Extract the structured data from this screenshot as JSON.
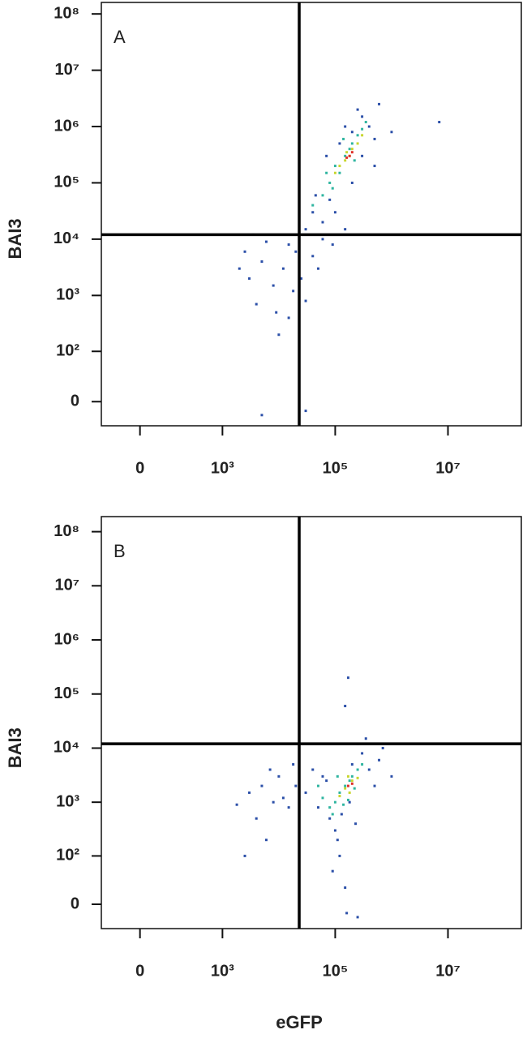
{
  "chart_data": [
    {
      "type": "scatter",
      "panel": "A",
      "ylabel": "BAI3",
      "xlim": [
        -160,
        200000000
      ],
      "ylim": [
        -30,
        160000000
      ],
      "xticks": [
        0,
        {
          "value": 1000,
          "label": "10³"
        },
        {
          "value": 100000,
          "label": "10⁵"
        },
        {
          "value": 10000000,
          "label": "10⁷"
        }
      ],
      "yticks": [
        0,
        {
          "value": 100,
          "label": "10²"
        },
        {
          "value": 1000,
          "label": "10³"
        },
        {
          "value": 10000,
          "label": "10⁴"
        },
        {
          "value": 100000,
          "label": "10⁵"
        },
        {
          "value": 1000000,
          "label": "10⁶"
        },
        {
          "value": 10000000,
          "label": "10⁷"
        },
        {
          "value": 100000000,
          "label": "10⁸"
        }
      ],
      "gates": {
        "x": 23000,
        "y": 12000
      },
      "series": [
        {
          "color": "#2b4fa8",
          "x": [
            3000,
            5000,
            8000,
            12000,
            20000,
            15000,
            6000,
            25000,
            40000,
            50000,
            30000,
            40000,
            60000,
            80000,
            100000,
            2000,
            4000,
            9000,
            10000,
            30000,
            15000,
            200000,
            300000,
            400000,
            250000,
            500000,
            600000,
            150000,
            70000,
            120000,
            200000,
            300000,
            150000,
            60000,
            90000,
            1000000,
            7000000,
            3500,
            45000,
            500000,
            18000,
            2500,
            30000,
            5000
          ],
          "values": [
            2000,
            4000,
            1500,
            3000,
            6000,
            8000,
            9000,
            2000,
            5000,
            3000,
            15000,
            30000,
            20000,
            50000,
            30000,
            3000,
            700,
            500,
            200,
            800,
            400,
            800000,
            1500000,
            1000000,
            2000000,
            600000,
            2500000,
            1000000,
            300000,
            500000,
            100000,
            300000,
            15000,
            10000,
            8000,
            800000,
            1200000,
            12000,
            60000,
            200000,
            1200,
            6000,
            -10,
            -15
          ]
        },
        {
          "color": "#2fb5a0",
          "x": [
            100000,
            150000,
            80000,
            200000,
            250000,
            120000,
            60000,
            300000,
            180000,
            90000,
            220000,
            140000,
            40000,
            350000,
            70000
          ],
          "values": [
            200000,
            300000,
            100000,
            500000,
            700000,
            150000,
            60000,
            900000,
            400000,
            80000,
            250000,
            600000,
            40000,
            1200000,
            150000
          ]
        },
        {
          "color": "#c8d630",
          "x": [
            150000,
            200000,
            120000,
            250000,
            180000,
            100000,
            300000,
            160000
          ],
          "values": [
            250000,
            400000,
            200000,
            500000,
            300000,
            150000,
            700000,
            350000
          ]
        },
        {
          "color": "#e0302a",
          "x": [
            180000,
            200000,
            160000
          ],
          "values": [
            300000,
            350000,
            280000
          ]
        }
      ]
    },
    {
      "type": "scatter",
      "panel": "B",
      "ylabel": "BAI3",
      "xlabel": "eGFP",
      "xlim": [
        -160,
        200000000
      ],
      "ylim": [
        -32,
        190000000
      ],
      "xticks": [
        0,
        {
          "value": 1000,
          "label": "10³"
        },
        {
          "value": 100000,
          "label": "10⁵"
        },
        {
          "value": 10000000,
          "label": "10⁷"
        }
      ],
      "yticks": [
        0,
        {
          "value": 100,
          "label": "10²"
        },
        {
          "value": 1000,
          "label": "10³"
        },
        {
          "value": 10000,
          "label": "10⁴"
        },
        {
          "value": 100000,
          "label": "10⁵"
        },
        {
          "value": 1000000,
          "label": "10⁶"
        },
        {
          "value": 10000000,
          "label": "10⁷"
        },
        {
          "value": 100000000,
          "label": "10⁸"
        }
      ],
      "gates": {
        "x": 23000,
        "y": 12000
      },
      "series": [
        {
          "color": "#2b4fa8",
          "x": [
            3000,
            5000,
            8000,
            10000,
            15000,
            20000,
            4000,
            6000,
            2500,
            12000,
            30000,
            50000,
            60000,
            80000,
            100000,
            120000,
            90000,
            150000,
            110000,
            130000,
            200000,
            300000,
            400000,
            500000,
            600000,
            250000,
            350000,
            700000,
            150000,
            170000,
            1000000,
            70000,
            40000,
            180000,
            230000,
            1800,
            7000,
            18000,
            160000,
            250000
          ],
          "values": [
            1500,
            2000,
            1000,
            3000,
            800,
            2000,
            500,
            200,
            100,
            1200,
            1500,
            800,
            3000,
            500,
            300,
            100,
            50,
            20,
            200,
            600,
            5000,
            8000,
            4000,
            2000,
            6000,
            12000,
            15000,
            10000,
            60000,
            200000,
            3000,
            2500,
            4000,
            1000,
            400,
            900,
            4000,
            5000,
            -10,
            -15
          ]
        },
        {
          "color": "#2fb5a0",
          "x": [
            100000,
            150000,
            80000,
            200000,
            120000,
            250000,
            60000,
            180000,
            300000,
            90000,
            140000,
            220000,
            110000,
            170000,
            50000
          ],
          "values": [
            1000,
            2000,
            800,
            3000,
            1500,
            4000,
            1200,
            2500,
            5000,
            600,
            900,
            1800,
            3000,
            1100,
            2000
          ]
        },
        {
          "color": "#c8d630",
          "x": [
            150000,
            200000,
            120000,
            180000,
            170000,
            250000
          ],
          "values": [
            1800,
            2500,
            1300,
            1500,
            3000,
            2800
          ]
        },
        {
          "color": "#e0302a",
          "x": [
            170000,
            200000
          ],
          "values": [
            2000,
            2200
          ]
        }
      ]
    }
  ]
}
